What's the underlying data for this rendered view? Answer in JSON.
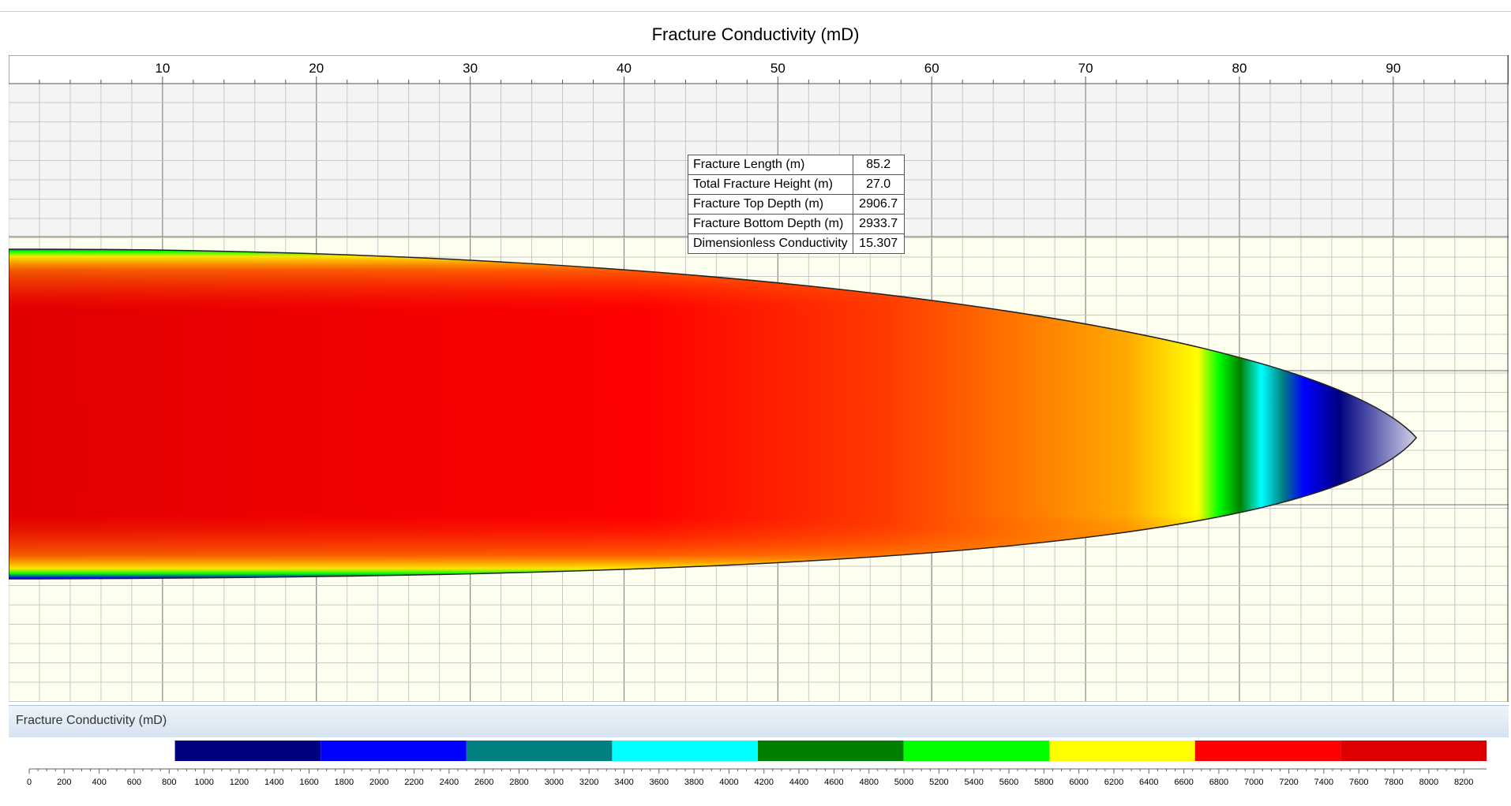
{
  "title": "Fracture Conductivity (mD)",
  "info": [
    {
      "label": "Fracture Length (m)",
      "value": "85.2"
    },
    {
      "label": "Total Fracture Height (m)",
      "value": "27.0"
    },
    {
      "label": "Fracture Top Depth (m)",
      "value": "2906.7"
    },
    {
      "label": "Fracture Bottom Depth (m)",
      "value": "2933.7"
    },
    {
      "label": "Dimensionless Conductivity",
      "value": "15.307"
    }
  ],
  "legend": {
    "title": "Fracture Conductivity (mD)",
    "ticks": [
      "0",
      "200",
      "400",
      "600",
      "800",
      "1000",
      "1200",
      "1400",
      "1600",
      "1800",
      "2000",
      "2200",
      "2400",
      "2600",
      "2800",
      "3000",
      "3200",
      "3400",
      "3600",
      "3800",
      "4000",
      "4200",
      "4400",
      "4600",
      "4800",
      "5000",
      "5200",
      "5400",
      "5600",
      "5800",
      "6000",
      "6200",
      "6400",
      "6600",
      "6800",
      "7000",
      "7200",
      "7400",
      "7600",
      "7800",
      "8000",
      "8200"
    ],
    "bands": [
      {
        "from": 0,
        "to": 833,
        "color": "#ffffff"
      },
      {
        "from": 833,
        "to": 1666,
        "color": "#000080"
      },
      {
        "from": 1666,
        "to": 2499,
        "color": "#0000ff"
      },
      {
        "from": 2499,
        "to": 3332,
        "color": "#008080"
      },
      {
        "from": 3332,
        "to": 4165,
        "color": "#00ffff"
      },
      {
        "from": 4165,
        "to": 4998,
        "color": "#008000"
      },
      {
        "from": 4998,
        "to": 5831,
        "color": "#00ff00"
      },
      {
        "from": 5831,
        "to": 6664,
        "color": "#ffff00"
      },
      {
        "from": 6664,
        "to": 7497,
        "color": "#ff0000"
      },
      {
        "from": 7497,
        "to": 8330,
        "color": "#dd0000"
      }
    ]
  },
  "chart_data": {
    "type": "heatmap",
    "title": "Fracture Conductivity (mD)",
    "xlabel": "",
    "ylabel": "",
    "x_ticks": [
      "10",
      "20",
      "30",
      "40",
      "50",
      "60",
      "70",
      "80",
      "90"
    ],
    "xlim": [
      0,
      97.5
    ],
    "x_tick_values": [
      10,
      20,
      30,
      40,
      50,
      60,
      70,
      80,
      90
    ],
    "fracture_length_m": 85.2,
    "fracture_tip_x": 91.5,
    "grid": true,
    "colorscale": {
      "min": 0,
      "max": 8330
    },
    "profile": [
      {
        "x": 0,
        "conductivity": 7600
      },
      {
        "x": 10,
        "conductivity": 7500
      },
      {
        "x": 20,
        "conductivity": 7400
      },
      {
        "x": 30,
        "conductivity": 7300
      },
      {
        "x": 40,
        "conductivity": 7200
      },
      {
        "x": 50,
        "conductivity": 7000
      },
      {
        "x": 60,
        "conductivity": 6800
      },
      {
        "x": 70,
        "conductivity": 6300
      },
      {
        "x": 77,
        "conductivity": 5500
      },
      {
        "x": 80,
        "conductivity": 4000
      },
      {
        "x": 84,
        "conductivity": 1500
      },
      {
        "x": 88,
        "conductivity": 600
      },
      {
        "x": 91.5,
        "conductivity": 200
      }
    ]
  }
}
